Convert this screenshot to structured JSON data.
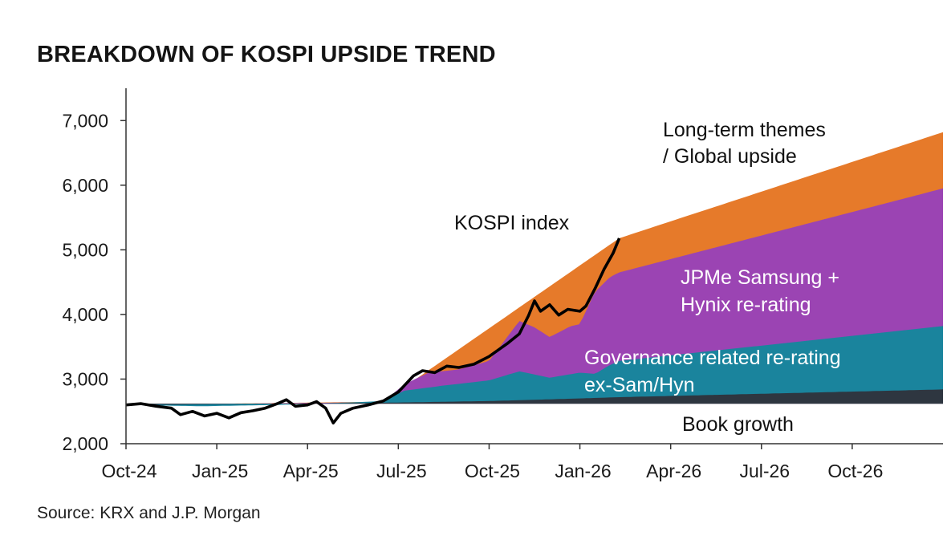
{
  "title": "BREAKDOWN OF KOSPI UPSIDE TREND",
  "source": "Source: KRX and J.P. Morgan",
  "colors": {
    "book_growth": "#2e3640",
    "governance": "#1a849d",
    "jpme": "#9b44b3",
    "long_term": "#e67a2a",
    "kospi_line": "#000000",
    "axis": "#333333",
    "white_text": "#ffffff"
  },
  "chart_data": {
    "type": "area",
    "title": "BREAKDOWN OF KOSPI UPSIDE TREND",
    "xlabel": "",
    "ylabel": "",
    "x_start": "2024-10",
    "x_ticks": [
      "Oct-24",
      "Jan-25",
      "Apr-25",
      "Jul-25",
      "Oct-25",
      "Jan-26",
      "Apr-26",
      "Jul-26",
      "Oct-26"
    ],
    "x_tick_months": [
      0,
      3,
      6,
      9,
      12,
      15,
      18,
      21,
      24
    ],
    "xlim_months": [
      0,
      27
    ],
    "ylim": [
      2000,
      7500
    ],
    "y_ticks": [
      2000,
      3000,
      4000,
      5000,
      6000,
      7000
    ],
    "y_tick_labels": [
      "2,000",
      "3,000",
      "4,000",
      "5,000",
      "6,000",
      "7,000"
    ],
    "baseline": 2620,
    "series": [
      {
        "name": "Book growth",
        "label": "Book growth",
        "stack": "book_growth",
        "points": [
          [
            0,
            2600
          ],
          [
            8,
            2630
          ],
          [
            12,
            2660
          ],
          [
            15,
            2700
          ],
          [
            16.3,
            2720
          ],
          [
            27,
            2840
          ]
        ]
      },
      {
        "name": "Governance related re-rating ex-Sam/Hyn",
        "label_lines": [
          "Governance related re-rating",
          "ex-Sam/Hyn"
        ],
        "stack": "governance",
        "points": [
          [
            0,
            2600
          ],
          [
            2.5,
            2580
          ],
          [
            5,
            2600
          ],
          [
            7.5,
            2640
          ],
          [
            8.5,
            2660
          ],
          [
            9.2,
            2820
          ],
          [
            10.5,
            2900
          ],
          [
            12,
            2980
          ],
          [
            13,
            3120
          ],
          [
            14,
            3020
          ],
          [
            15,
            3100
          ],
          [
            15.5,
            3080
          ],
          [
            16,
            3220
          ],
          [
            16.3,
            3280
          ],
          [
            27,
            3820
          ]
        ]
      },
      {
        "name": "JPMe Samsung + Hynix re-rating",
        "label_lines": [
          "JPMe Samsung +",
          "Hynix re-rating"
        ],
        "stack": "jpme",
        "points": [
          [
            0,
            2600
          ],
          [
            8,
            2640
          ],
          [
            8.5,
            2650
          ],
          [
            9.2,
            2920
          ],
          [
            10,
            3100
          ],
          [
            11,
            3150
          ],
          [
            12,
            3280
          ],
          [
            13,
            3900
          ],
          [
            13.5,
            3800
          ],
          [
            14,
            3650
          ],
          [
            14.7,
            3820
          ],
          [
            15,
            3850
          ],
          [
            15.5,
            4350
          ],
          [
            16,
            4580
          ],
          [
            16.3,
            4650
          ],
          [
            27,
            5950
          ]
        ]
      },
      {
        "name": "Long-term themes / Global upside",
        "label_lines": [
          "Long-term themes",
          "/ Global upside"
        ],
        "stack": "long_term",
        "points": [
          [
            0,
            2600
          ],
          [
            8.5,
            2650
          ],
          [
            16.3,
            5180
          ],
          [
            27,
            6820
          ]
        ]
      },
      {
        "name": "KOSPI index",
        "label": "KOSPI index",
        "stack": "kospi_line",
        "points": [
          [
            0,
            2600
          ],
          [
            0.5,
            2620
          ],
          [
            1,
            2580
          ],
          [
            1.5,
            2550
          ],
          [
            1.8,
            2450
          ],
          [
            2.2,
            2500
          ],
          [
            2.6,
            2430
          ],
          [
            3,
            2470
          ],
          [
            3.4,
            2400
          ],
          [
            3.8,
            2480
          ],
          [
            4.2,
            2510
          ],
          [
            4.6,
            2550
          ],
          [
            5,
            2620
          ],
          [
            5.3,
            2680
          ],
          [
            5.6,
            2580
          ],
          [
            6,
            2600
          ],
          [
            6.3,
            2650
          ],
          [
            6.6,
            2550
          ],
          [
            6.85,
            2320
          ],
          [
            7.1,
            2470
          ],
          [
            7.5,
            2550
          ],
          [
            8,
            2600
          ],
          [
            8.5,
            2660
          ],
          [
            9,
            2800
          ],
          [
            9.5,
            3050
          ],
          [
            9.8,
            3130
          ],
          [
            10.2,
            3100
          ],
          [
            10.6,
            3200
          ],
          [
            11,
            3180
          ],
          [
            11.5,
            3230
          ],
          [
            12,
            3350
          ],
          [
            12.3,
            3450
          ],
          [
            12.6,
            3550
          ],
          [
            13,
            3700
          ],
          [
            13.3,
            3980
          ],
          [
            13.5,
            4210
          ],
          [
            13.7,
            4050
          ],
          [
            14,
            4150
          ],
          [
            14.3,
            3990
          ],
          [
            14.6,
            4080
          ],
          [
            15,
            4050
          ],
          [
            15.2,
            4130
          ],
          [
            15.5,
            4400
          ],
          [
            15.8,
            4700
          ],
          [
            16.1,
            4950
          ],
          [
            16.3,
            5180
          ]
        ]
      }
    ],
    "annotations": {
      "kospi": "KOSPI index",
      "long_term_1": "Long-term themes",
      "long_term_2": "/ Global upside",
      "jpme_1": "JPMe Samsung +",
      "jpme_2": "Hynix re-rating",
      "gov_1": "Governance related re-rating",
      "gov_2": "ex-Sam/Hyn",
      "book": "Book growth"
    }
  }
}
